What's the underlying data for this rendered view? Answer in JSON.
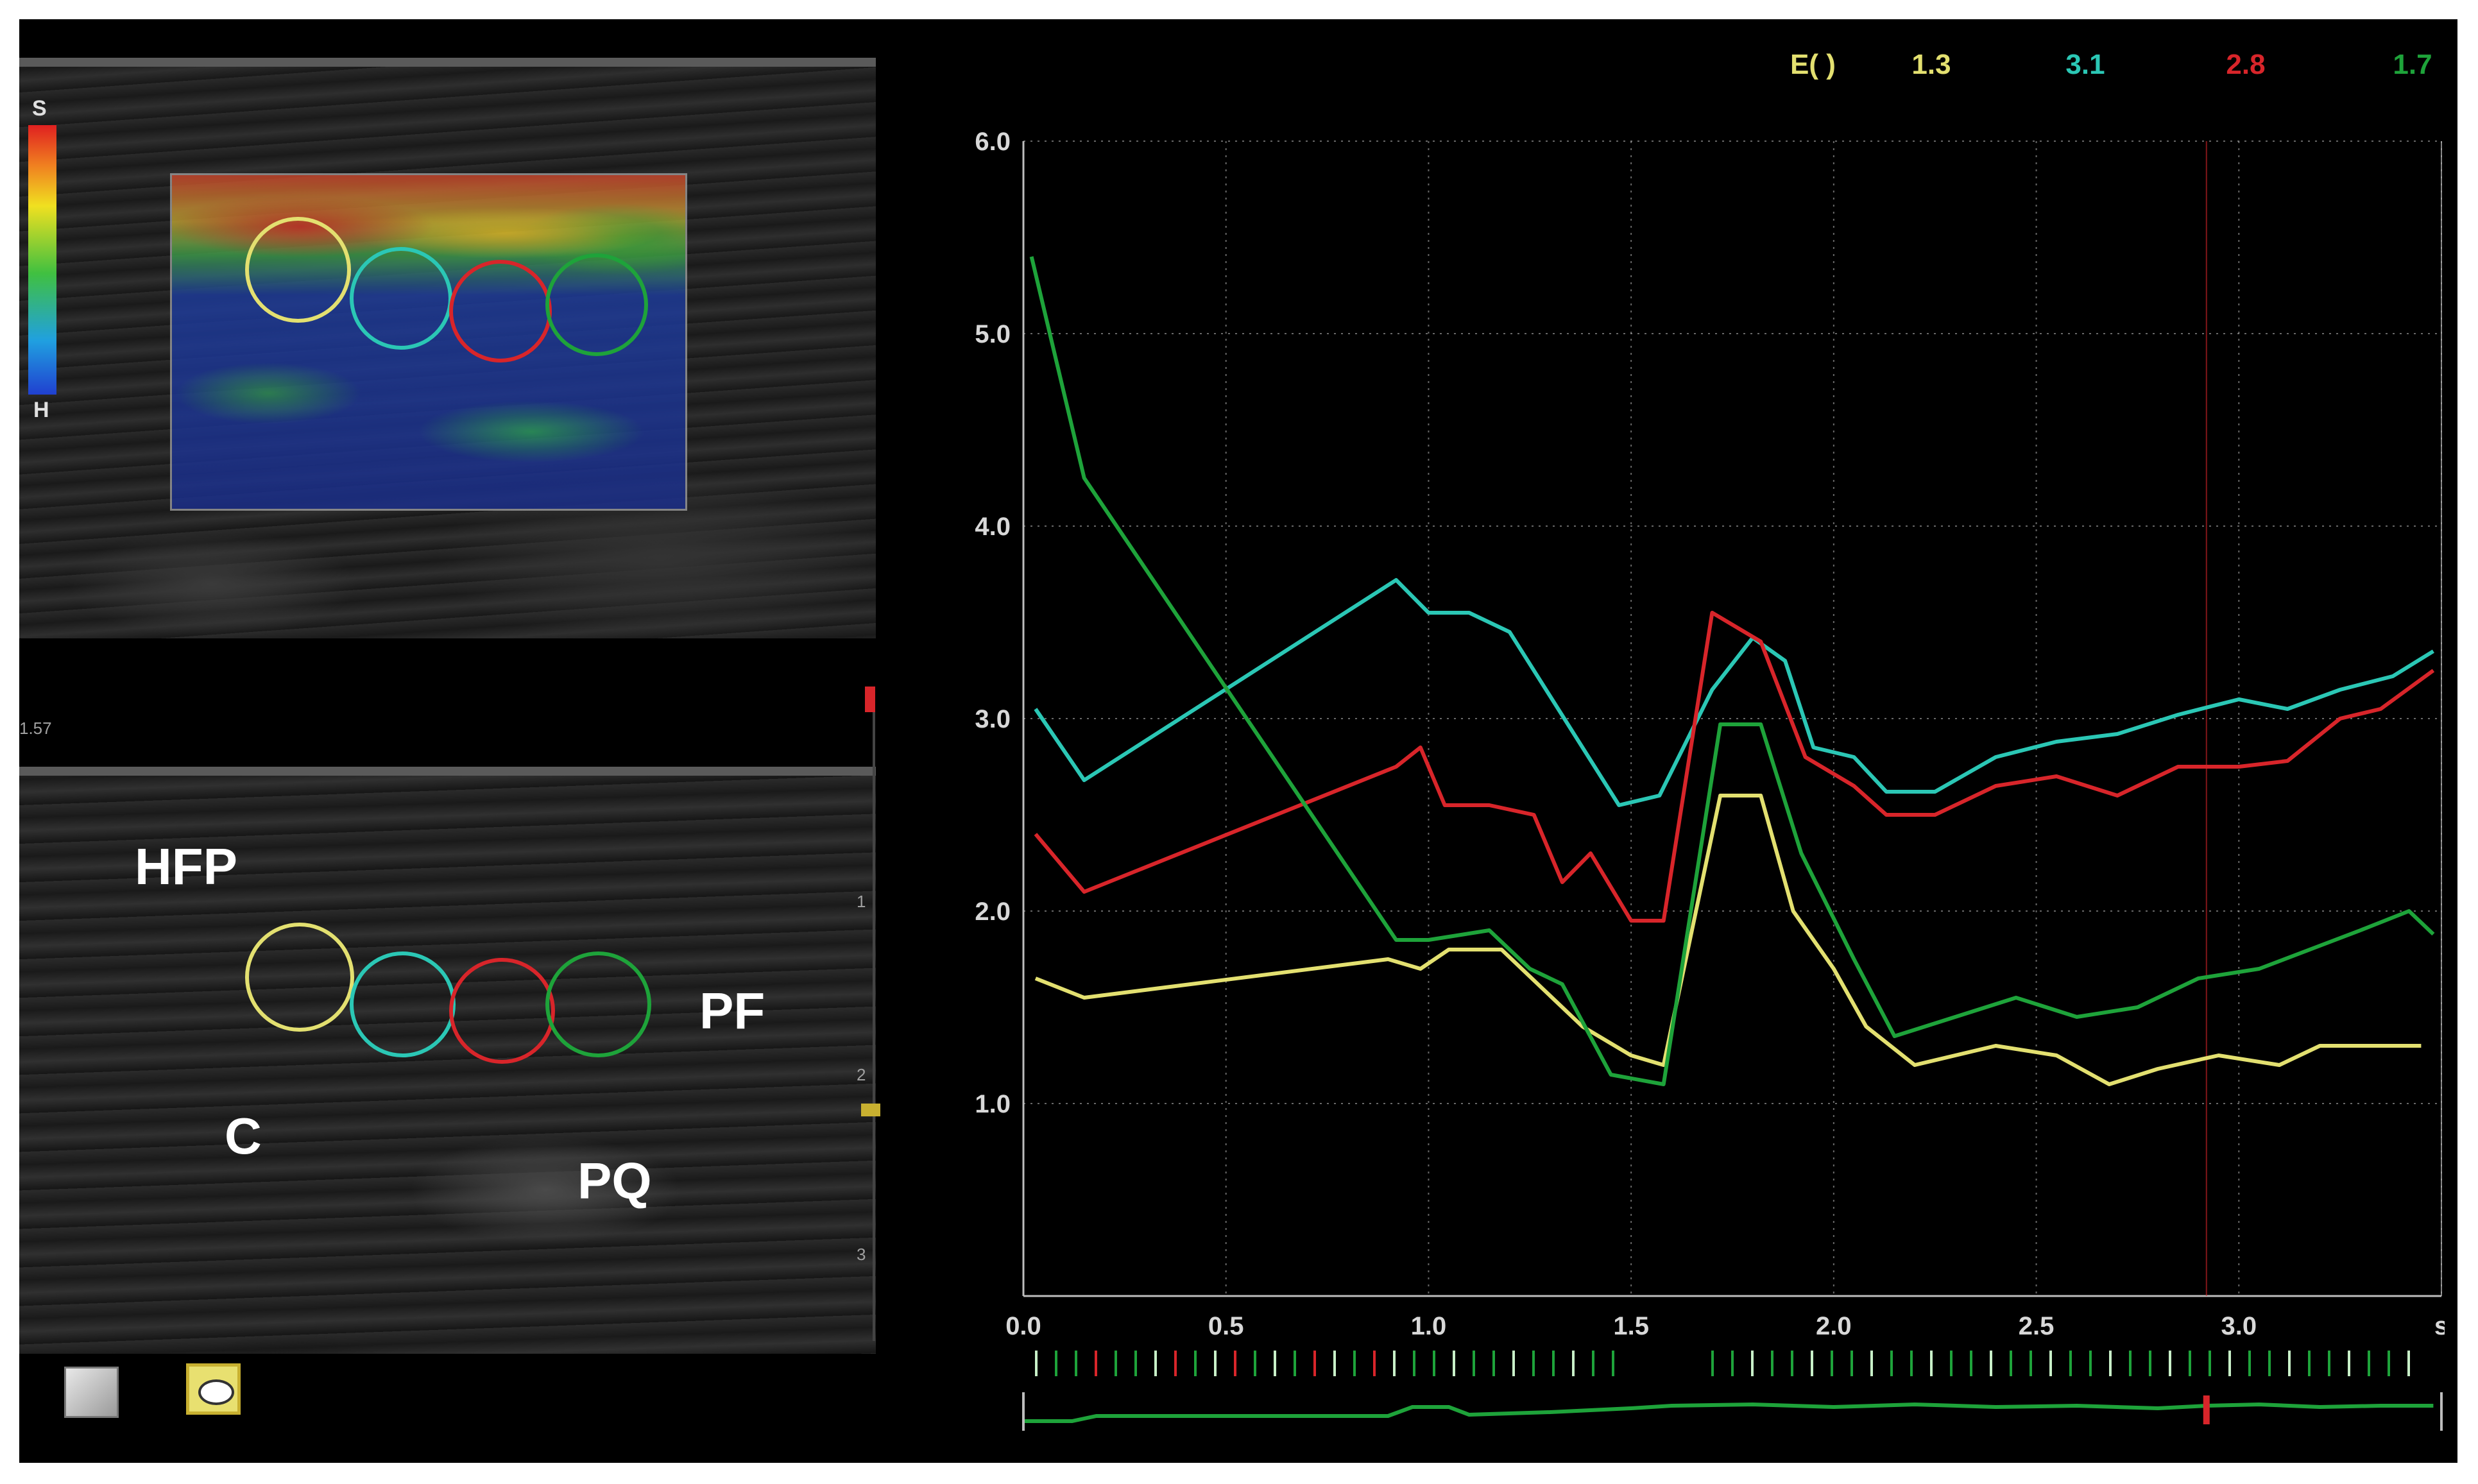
{
  "colors": {
    "yellow": "#e3e070",
    "cyan": "#2bc7b5",
    "red": "#d8252a",
    "green": "#1ea33a",
    "grid": "#bdbdbd",
    "axis_text": "#d8d8d8"
  },
  "elastography": {
    "colorbar_top": "S",
    "colorbar_bottom": "H",
    "depth_label": "1.57"
  },
  "bmode": {
    "labels": {
      "hfp": "HFP",
      "pf": "PF",
      "c": "C",
      "pq": "PQ"
    },
    "scale_marks": [
      "1",
      "2",
      "3"
    ]
  },
  "toolbar": {
    "icons": [
      "ruler-icon",
      "roi-ellipse-icon"
    ]
  },
  "chart_data": {
    "type": "line",
    "legend_header": "E( )",
    "xlim": [
      0,
      3.5
    ],
    "ylim": [
      0,
      6.0
    ],
    "x_ticks": [
      "0.0",
      "0.5",
      "1.0",
      "1.5",
      "2.0",
      "2.5",
      "3.0",
      "s"
    ],
    "x_tick_values": [
      0,
      0.5,
      1.0,
      1.5,
      2.0,
      2.5,
      3.0,
      3.5
    ],
    "y_ticks": [
      "1.0",
      "2.0",
      "3.0",
      "4.0",
      "5.0",
      "6.0"
    ],
    "y_tick_values": [
      1.0,
      2.0,
      3.0,
      4.0,
      5.0,
      6.0
    ],
    "grid": true,
    "series": [
      {
        "name": "1.3",
        "color": "#e3e070",
        "points": [
          [
            0.03,
            1.65
          ],
          [
            0.15,
            1.55
          ],
          [
            0.9,
            1.75
          ],
          [
            0.98,
            1.7
          ],
          [
            1.05,
            1.8
          ],
          [
            1.18,
            1.8
          ],
          [
            1.28,
            1.6
          ],
          [
            1.38,
            1.4
          ],
          [
            1.5,
            1.25
          ],
          [
            1.58,
            1.2
          ],
          [
            1.72,
            2.6
          ],
          [
            1.82,
            2.6
          ],
          [
            1.9,
            2.0
          ],
          [
            2.0,
            1.7
          ],
          [
            2.08,
            1.4
          ],
          [
            2.2,
            1.2
          ],
          [
            2.4,
            1.3
          ],
          [
            2.55,
            1.25
          ],
          [
            2.68,
            1.1
          ],
          [
            2.8,
            1.18
          ],
          [
            2.95,
            1.25
          ],
          [
            3.1,
            1.2
          ],
          [
            3.2,
            1.3
          ],
          [
            3.35,
            1.3
          ],
          [
            3.45,
            1.3
          ]
        ]
      },
      {
        "name": "3.1",
        "color": "#2bc7b5",
        "points": [
          [
            0.03,
            3.05
          ],
          [
            0.15,
            2.68
          ],
          [
            0.92,
            3.72
          ],
          [
            1.0,
            3.55
          ],
          [
            1.1,
            3.55
          ],
          [
            1.2,
            3.45
          ],
          [
            1.35,
            2.95
          ],
          [
            1.47,
            2.55
          ],
          [
            1.57,
            2.6
          ],
          [
            1.7,
            3.15
          ],
          [
            1.8,
            3.42
          ],
          [
            1.88,
            3.3
          ],
          [
            1.95,
            2.85
          ],
          [
            2.05,
            2.8
          ],
          [
            2.13,
            2.62
          ],
          [
            2.25,
            2.62
          ],
          [
            2.4,
            2.8
          ],
          [
            2.55,
            2.88
          ],
          [
            2.7,
            2.92
          ],
          [
            2.85,
            3.02
          ],
          [
            3.0,
            3.1
          ],
          [
            3.12,
            3.05
          ],
          [
            3.25,
            3.15
          ],
          [
            3.38,
            3.22
          ],
          [
            3.48,
            3.35
          ]
        ]
      },
      {
        "name": "2.8",
        "color": "#d8252a",
        "points": [
          [
            0.03,
            2.4
          ],
          [
            0.15,
            2.1
          ],
          [
            0.92,
            2.75
          ],
          [
            0.98,
            2.85
          ],
          [
            1.04,
            2.55
          ],
          [
            1.15,
            2.55
          ],
          [
            1.26,
            2.5
          ],
          [
            1.33,
            2.15
          ],
          [
            1.4,
            2.3
          ],
          [
            1.5,
            1.95
          ],
          [
            1.58,
            1.95
          ],
          [
            1.7,
            3.55
          ],
          [
            1.82,
            3.4
          ],
          [
            1.93,
            2.8
          ],
          [
            2.05,
            2.65
          ],
          [
            2.13,
            2.5
          ],
          [
            2.25,
            2.5
          ],
          [
            2.4,
            2.65
          ],
          [
            2.55,
            2.7
          ],
          [
            2.7,
            2.6
          ],
          [
            2.85,
            2.75
          ],
          [
            3.0,
            2.75
          ],
          [
            3.12,
            2.78
          ],
          [
            3.25,
            3.0
          ],
          [
            3.35,
            3.05
          ],
          [
            3.48,
            3.25
          ]
        ]
      },
      {
        "name": "1.7",
        "color": "#1ea33a",
        "points": [
          [
            0.02,
            5.4
          ],
          [
            0.15,
            4.25
          ],
          [
            0.92,
            1.85
          ],
          [
            1.0,
            1.85
          ],
          [
            1.15,
            1.9
          ],
          [
            1.25,
            1.7
          ],
          [
            1.33,
            1.62
          ],
          [
            1.45,
            1.15
          ],
          [
            1.58,
            1.1
          ],
          [
            1.72,
            2.97
          ],
          [
            1.82,
            2.97
          ],
          [
            1.92,
            2.3
          ],
          [
            2.05,
            1.75
          ],
          [
            2.15,
            1.35
          ],
          [
            2.3,
            1.45
          ],
          [
            2.45,
            1.55
          ],
          [
            2.6,
            1.45
          ],
          [
            2.75,
            1.5
          ],
          [
            2.9,
            1.65
          ],
          [
            3.05,
            1.7
          ],
          [
            3.2,
            1.82
          ],
          [
            3.3,
            1.9
          ],
          [
            3.42,
            2.0
          ],
          [
            3.48,
            1.88
          ]
        ]
      }
    ]
  }
}
